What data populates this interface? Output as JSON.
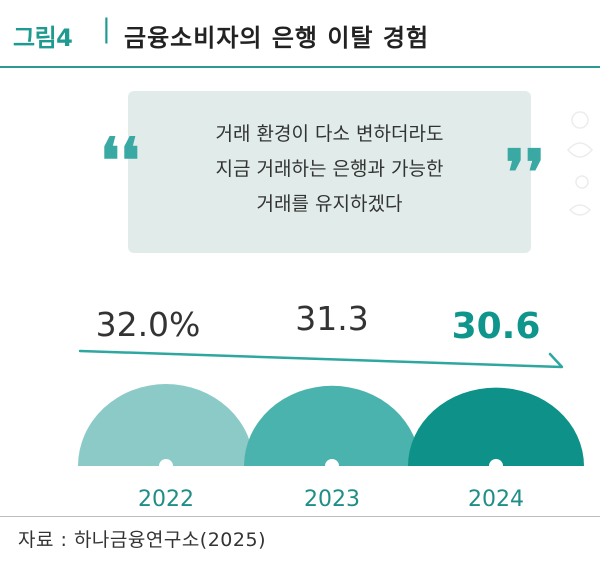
{
  "figure": {
    "label": "그림4",
    "separator": "|",
    "title": "금융소비자의 은행 이탈 경험"
  },
  "quote": {
    "lines": [
      "거래 환경이 다소 변하더라도",
      "지금 거래하는 은행과 가능한",
      "거래를 유지하겠다"
    ],
    "open_mark": "❛❛",
    "close_mark": "❜❜"
  },
  "chart_data": {
    "type": "bar",
    "categories": [
      "2022",
      "2023",
      "2024"
    ],
    "values": [
      32.0,
      31.3,
      30.6
    ],
    "value_labels": [
      "32.0%",
      "31.3",
      "30.6"
    ],
    "title": "",
    "xlabel": "",
    "ylabel": "",
    "unit": "%",
    "colors": [
      "#8ccac7",
      "#4bb3ad",
      "#0d9189"
    ],
    "value_label_colors": [
      "#333333",
      "#333333",
      "#0f958c"
    ],
    "trend_arrow": "decreasing",
    "grid": false
  },
  "source": "자료 : 하나금융연구소(2025)",
  "colors": {
    "accent": "#1f9a90",
    "quote_bg": "#e1ecea"
  }
}
